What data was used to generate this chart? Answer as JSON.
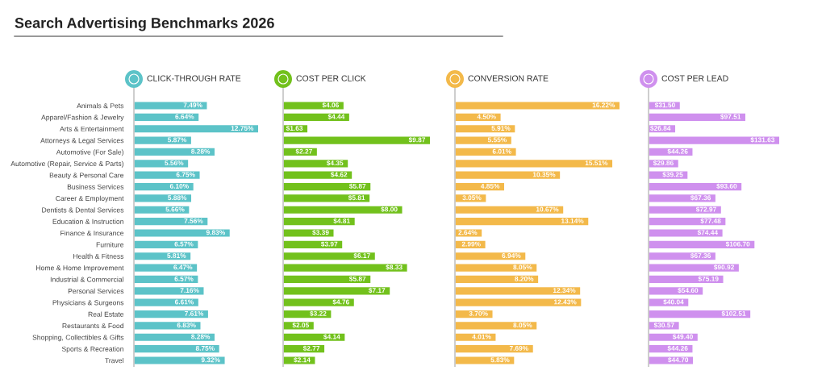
{
  "chart_data": [
    {
      "type": "bar",
      "orientation": "horizontal",
      "title": "Search Advertising Benchmarks 2026",
      "subtitle": "CLICK-THROUGH RATE",
      "categories": [
        "Animals & Pets",
        "Apparel/Fashion & Jewelry",
        "Arts & Entertainment",
        "Attorneys & Legal Services",
        "Automotive (For Sale)",
        "Automotive (Repair, Service & Parts)",
        "Beauty & Personal Care",
        "Business Services",
        "Career & Employment",
        "Dentists & Dental Services",
        "Education & Instruction",
        "Finance & Insurance",
        "Furniture",
        "Health & Fitness",
        "Home & Home Improvement",
        "Industrial & Commercial",
        "Personal Services",
        "Physicians & Surgeons",
        "Real Estate",
        "Restaurants & Food",
        "Shopping, Collectibles & Gifts",
        "Sports & Recreation",
        "Travel"
      ],
      "values": [
        7.49,
        6.64,
        12.75,
        5.87,
        8.28,
        5.56,
        6.75,
        6.1,
        5.88,
        5.66,
        7.56,
        9.83,
        6.57,
        5.81,
        6.47,
        6.57,
        7.16,
        6.61,
        7.61,
        6.83,
        8.28,
        8.75,
        9.32
      ],
      "value_labels": [
        "7.49%",
        "6.64%",
        "12.75%",
        "5.87%",
        "8.28%",
        "5.56%",
        "6.75%",
        "6.10%",
        "5.88%",
        "5.66%",
        "7.56%",
        "9.83%",
        "6.57%",
        "5.81%",
        "6.47%",
        "6.57%",
        "7.16%",
        "6.61%",
        "7.61%",
        "6.83%",
        "8.28%",
        "8.75%",
        "9.32%"
      ],
      "color": "#5cc3c8",
      "tick_labels": "y"
    },
    {
      "type": "bar",
      "orientation": "horizontal",
      "subtitle": "COST PER CLICK",
      "categories": [
        null,
        null,
        null,
        null,
        null,
        null,
        null,
        null,
        null,
        null,
        null,
        null,
        null,
        null,
        null,
        null,
        null,
        null,
        null,
        null,
        null,
        null,
        null
      ],
      "values": [
        4.06,
        4.44,
        1.63,
        9.87,
        2.27,
        4.35,
        4.62,
        5.87,
        5.81,
        8.0,
        4.81,
        3.39,
        3.97,
        6.17,
        8.33,
        5.87,
        7.17,
        4.76,
        3.22,
        2.05,
        4.14,
        2.77,
        2.14
      ],
      "value_labels": [
        "$4.06",
        "$4.44",
        "$1.63",
        "$9.87",
        "$2.27",
        "$4.35",
        "$4.62",
        "$5.87",
        "$5.81",
        "$8.00",
        "$4.81",
        "$3.39",
        "$3.97",
        "$6.17",
        "$8.33",
        "$5.87",
        "$7.17",
        "$4.76",
        "$3.22",
        "$2.05",
        "$4.14",
        "$2.77",
        "$2.14"
      ],
      "color": "#72c11c",
      "tick_labels": false
    },
    {
      "type": "bar",
      "orientation": "horizontal",
      "subtitle": "CONVERSION RATE",
      "categories": [
        null,
        null,
        null,
        null,
        null,
        null,
        null,
        null,
        null,
        null,
        null,
        null,
        null,
        null,
        null,
        null,
        null,
        null,
        null,
        null,
        null,
        null,
        null
      ],
      "values": [
        16.22,
        4.5,
        5.91,
        5.55,
        6.01,
        15.51,
        10.35,
        4.85,
        3.05,
        10.67,
        13.14,
        2.64,
        2.99,
        6.94,
        8.05,
        8.2,
        12.34,
        12.43,
        3.7,
        8.05,
        4.01,
        7.69,
        5.83
      ],
      "value_labels": [
        "16.22%",
        "4.50%",
        "5.91%",
        "5.55%",
        "6.01%",
        "15.51%",
        "10.35%",
        "4.85%",
        "3.05%",
        "10.67%",
        "13.14%",
        "2.64%",
        "2.99%",
        "6.94%",
        "8.05%",
        "8.20%",
        "12.34%",
        "12.43%",
        "3.70%",
        "8.05%",
        "4.01%",
        "7.69%",
        "5.83%"
      ],
      "color": "#f3b94a",
      "tick_labels": false
    },
    {
      "type": "bar",
      "orientation": "horizontal",
      "subtitle": "COST PER LEAD",
      "categories": [
        null,
        null,
        null,
        null,
        null,
        null,
        null,
        null,
        null,
        null,
        null,
        null,
        null,
        null,
        null,
        null,
        null,
        null,
        null,
        null,
        null,
        null,
        null
      ],
      "values": [
        31.5,
        97.51,
        26.84,
        131.63,
        44.26,
        29.86,
        39.25,
        93.6,
        67.36,
        72.97,
        77.48,
        74.44,
        106.7,
        67.36,
        90.92,
        75.19,
        54.6,
        40.04,
        102.51,
        30.57,
        49.4,
        44.26,
        44.7
      ],
      "value_labels": [
        "$31.50",
        "$97.51",
        "$26.84",
        "$131.63",
        "$44.26",
        "$29.86",
        "$39.25",
        "$93.60",
        "$67.36",
        "$72.97",
        "$77.48",
        "$74.44",
        "$106.70",
        "$67.36",
        "$90.92",
        "$75.19",
        "$54.60",
        "$40.04",
        "$102.51",
        "$30.57",
        "$49.40",
        "$44.26",
        "$44.70"
      ],
      "color": "#cf90ee",
      "tick_labels": false
    }
  ]
}
